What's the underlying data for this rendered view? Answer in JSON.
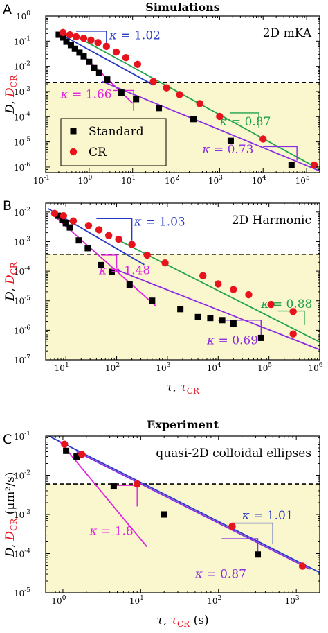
{
  "figure": {
    "background": "#ffffff",
    "shade_color": "#faf6cd"
  },
  "chart_data": [
    {
      "type": "scatter",
      "panel_label": "A",
      "title": "Simulations",
      "system": "2D mKA",
      "xlim": [
        0.1,
        200000
      ],
      "ylim": [
        6e-07,
        1
      ],
      "log_x": true,
      "log_y": true,
      "x_ticks": [
        {
          "v": 0.1,
          "m": "10",
          "e": "-1"
        },
        {
          "v": 1,
          "m": "10",
          "e": "0"
        },
        {
          "v": 10,
          "m": "10",
          "e": "1"
        },
        {
          "v": 100,
          "m": "10",
          "e": "2"
        },
        {
          "v": 1000,
          "m": "10",
          "e": "3"
        },
        {
          "v": 10000,
          "m": "10",
          "e": "4"
        },
        {
          "v": 100000,
          "m": "10",
          "e": "5"
        }
      ],
      "y_ticks": [
        {
          "v": 1e-06,
          "m": "10",
          "e": "-6"
        },
        {
          "v": 1e-05,
          "m": "10",
          "e": "-5"
        },
        {
          "v": 0.0001,
          "m": "10",
          "e": "-4"
        },
        {
          "v": 0.001,
          "m": "10",
          "e": "-3"
        },
        {
          "v": 0.01,
          "m": "10",
          "e": "-2"
        },
        {
          "v": 0.1,
          "m": "10",
          "e": "-1"
        },
        {
          "v": 1,
          "m": "10",
          "e": "0"
        }
      ],
      "threshold_y": 0.0023,
      "ylabel": {
        "main": "D, ",
        "cr": "D",
        "sub": "CR"
      },
      "legend": {
        "placement": "bottom-left",
        "entries": [
          "Standard",
          "CR"
        ]
      },
      "series": [
        {
          "name": "Standard",
          "marker": "square",
          "color": "#000000",
          "x": [
            0.2,
            0.25,
            0.3,
            0.38,
            0.47,
            0.6,
            0.75,
            1.0,
            1.3,
            1.7,
            2.6,
            5.5,
            12,
            40,
            250,
            1800,
            45000
          ],
          "y": [
            0.18,
            0.14,
            0.095,
            0.07,
            0.05,
            0.035,
            0.025,
            0.015,
            0.0085,
            0.0055,
            0.003,
            0.0009,
            0.0005,
            0.00022,
            8e-05,
            1.1e-05,
            1.2e-06
          ]
        },
        {
          "name": "CR",
          "marker": "circle",
          "color": "#e8141d",
          "x": [
            0.25,
            0.36,
            0.5,
            0.75,
            1.1,
            1.6,
            2.5,
            4.2,
            7,
            13,
            30,
            60,
            120,
            350,
            1000,
            10000,
            150000
          ],
          "y": [
            0.22,
            0.18,
            0.15,
            0.13,
            0.11,
            0.088,
            0.062,
            0.037,
            0.022,
            0.012,
            0.0025,
            0.0014,
            0.00075,
            0.00033,
            0.000102,
            1.3e-05,
            1.2e-06
          ]
        }
      ],
      "fits": [
        {
          "color": "#2438c4",
          "x": [
            0.18,
            30
          ],
          "y": [
            0.23,
            0.0018
          ]
        },
        {
          "color": "#1fa34a",
          "x": [
            0.35,
            200000
          ],
          "y": [
            0.22,
            8e-07
          ]
        },
        {
          "color": "#e021e0",
          "x": [
            0.22,
            10
          ],
          "y": [
            0.2,
            0.00034
          ]
        },
        {
          "color": "#8a2be2",
          "x": [
            2,
            200000
          ],
          "y": [
            0.0025,
            7e-07
          ]
        }
      ],
      "triangles": [
        {
          "color": "#2438c4",
          "x0": 0.5,
          "x1": 2.5,
          "y_top": 0.25,
          "y_bot": 0.048
        },
        {
          "color": "#1fa34a",
          "x0": 1700,
          "x1": 8000,
          "y_top": 0.00014,
          "y_bot": 3.5e-05
        },
        {
          "color": "#e021e0",
          "x0": 3.5,
          "x1": 10.5,
          "y_top": 0.0011,
          "y_bot": 0.00017
        },
        {
          "color": "#8a2be2",
          "x0": 10000,
          "x1": 60000,
          "y_top": 6.5e-06,
          "y_bot": 1.8e-06
        }
      ],
      "kappa_labels": [
        {
          "color": "#2438c4",
          "value": "1.02",
          "x": 2.9,
          "y": 0.12
        },
        {
          "color": "#1fa34a",
          "value": "0.87",
          "x": 1000,
          "y": 4.5e-05
        },
        {
          "color": "#e021e0",
          "value": "1.66",
          "x": 0.22,
          "y": 0.00055
        },
        {
          "color": "#8a2be2",
          "value": "0.73",
          "x": 400,
          "y": 3.5e-06
        }
      ]
    },
    {
      "type": "scatter",
      "panel_label": "B",
      "system": "2D Harmonic",
      "xlim": [
        4,
        1000000
      ],
      "ylim": [
        1e-07,
        0.02
      ],
      "log_x": true,
      "log_y": true,
      "x_ticks": [
        {
          "v": 10,
          "m": "10",
          "e": "1"
        },
        {
          "v": 100,
          "m": "10",
          "e": "2"
        },
        {
          "v": 1000,
          "m": "10",
          "e": "3"
        },
        {
          "v": 10000,
          "m": "10",
          "e": "4"
        },
        {
          "v": 100000,
          "m": "10",
          "e": "5"
        },
        {
          "v": 1000000,
          "m": "10",
          "e": "6"
        }
      ],
      "y_ticks": [
        {
          "v": 1e-07,
          "m": "10",
          "e": "-7"
        },
        {
          "v": 1e-06,
          "m": "10",
          "e": "-6"
        },
        {
          "v": 1e-05,
          "m": "10",
          "e": "-5"
        },
        {
          "v": 0.0001,
          "m": "10",
          "e": "-4"
        },
        {
          "v": 0.001,
          "m": "10",
          "e": "-3"
        },
        {
          "v": 0.01,
          "m": "10",
          "e": "-2"
        }
      ],
      "threshold_y": 0.00037,
      "ylabel": {
        "main": "D, ",
        "cr": "D",
        "sub": "CR"
      },
      "xlabel": {
        "main": "τ, ",
        "cr": "τ",
        "sub": "CR",
        "unit": ""
      },
      "series": [
        {
          "name": "Standard",
          "marker": "square",
          "color": "#000000",
          "x": [
            7,
            8.5,
            10,
            12,
            18,
            27,
            50,
            80,
            180,
            500,
            1800,
            4000,
            7000,
            12000,
            20000,
            70000
          ],
          "y": [
            0.0075,
            0.0055,
            0.0042,
            0.003,
            0.0011,
            0.0006,
            0.00016,
            9.5e-05,
            3.5e-05,
            1e-05,
            5.2e-06,
            2.8e-06,
            2.6e-06,
            2.2e-06,
            1.7e-06,
            5.5e-07
          ]
        },
        {
          "name": "CR",
          "marker": "circle",
          "color": "#e8141d",
          "x": [
            6,
            9,
            14,
            28,
            45,
            70,
            110,
            200,
            400,
            900,
            5000,
            10000,
            20000,
            40000,
            110000,
            300000
          ],
          "y": [
            0.009,
            0.0075,
            0.005,
            0.0035,
            0.0025,
            0.0016,
            0.0012,
            0.0008,
            0.00035,
            0.00019,
            7e-05,
            3.7e-05,
            2.4e-05,
            1.6e-05,
            7.5e-06,
            4.3e-06
          ]
        },
        {
          "name": "CR-end",
          "marker": "circle",
          "color": "#e8141d",
          "x": [
            300000
          ],
          "y": [
            7.5e-07
          ]
        }
      ],
      "fits": [
        {
          "color": "#2438c4",
          "x": [
            4.5,
            350
          ],
          "y": [
            0.013,
            0.000165
          ]
        },
        {
          "color": "#1fa34a",
          "x": [
            100,
            1000000
          ],
          "y": [
            0.0012,
            4e-07
          ]
        },
        {
          "color": "#e021e0",
          "x": [
            5,
            600
          ],
          "y": [
            0.0095,
            6.5e-06
          ]
        },
        {
          "color": "#8a2be2",
          "x": [
            100,
            1000000
          ],
          "y": [
            0.00011,
            2.2e-07
          ]
        }
      ],
      "triangles": [
        {
          "color": "#2438c4",
          "x0": 40,
          "x1": 200,
          "y_top": 0.006,
          "y_bot": 0.0011
        },
        {
          "color": "#1fa34a",
          "x0": 150000,
          "x1": 500000,
          "y_top": 4.5e-06,
          "y_bot": 1.5e-06
        },
        {
          "color": "#e021e0",
          "x0": 50,
          "x1": 100,
          "y_top": 0.00035,
          "y_bot": 0.00013
        },
        {
          "color": "#8a2be2",
          "x0": 10000,
          "x1": 70000,
          "y_top": 2.2e-06,
          "y_bot": 6.8e-07
        }
      ],
      "kappa_labels": [
        {
          "color": "#2438c4",
          "value": "1.03",
          "x": 220,
          "y": 0.0035
        },
        {
          "color": "#1fa34a",
          "value": "0.88",
          "x": 70000,
          "y": 5.8e-06
        },
        {
          "color": "#e021e0",
          "value": "1.48",
          "x": 45,
          "y": 7.8e-05
        },
        {
          "color": "#8a2be2",
          "value": "0.69",
          "x": 6000,
          "y": 3.4e-07
        }
      ]
    },
    {
      "type": "scatter",
      "panel_label": "C",
      "title": "Experiment",
      "system": "quasi-2D colloidal ellipses",
      "xlim": [
        0.6,
        2000
      ],
      "ylim": [
        1e-05,
        0.1
      ],
      "log_x": true,
      "log_y": true,
      "x_ticks": [
        {
          "v": 1,
          "m": "10",
          "e": "0"
        },
        {
          "v": 10,
          "m": "10",
          "e": "1"
        },
        {
          "v": 100,
          "m": "10",
          "e": "2"
        },
        {
          "v": 1000,
          "m": "10",
          "e": "3"
        }
      ],
      "y_ticks": [
        {
          "v": 1e-05,
          "m": "10",
          "e": "-5"
        },
        {
          "v": 0.0001,
          "m": "10",
          "e": "-4"
        },
        {
          "v": 0.001,
          "m": "10",
          "e": "-3"
        },
        {
          "v": 0.01,
          "m": "10",
          "e": "-2"
        },
        {
          "v": 0.1,
          "m": "10",
          "e": "-1"
        }
      ],
      "threshold_y": 0.006,
      "ylabel": {
        "main": "D, ",
        "cr": "D",
        "sub": "CR",
        "unit": " (μm²/s)"
      },
      "xlabel": {
        "main": "τ, ",
        "cr": "τ",
        "sub": "CR",
        "unit": " (s)"
      },
      "series": [
        {
          "name": "Standard",
          "marker": "square",
          "color": "#000000",
          "x": [
            1.1,
            1.5,
            4.5,
            20,
            320
          ],
          "y": [
            0.042,
            0.03,
            0.0052,
            0.001,
            9.5e-05
          ]
        },
        {
          "name": "CR",
          "marker": "circle",
          "color": "#e8141d",
          "x": [
            1.05,
            1.75,
            9,
            150,
            1200
          ],
          "y": [
            0.062,
            0.034,
            0.006,
            0.0005,
            4.8e-05
          ]
        }
      ],
      "fits": [
        {
          "color": "#2438c4",
          "x": [
            0.6,
            2000
          ],
          "y": [
            0.11,
            3.3e-05
          ]
        },
        {
          "color": "#e021e0",
          "x": [
            0.9,
            12
          ],
          "y": [
            0.075,
            0.00015
          ]
        },
        {
          "color": "#8a2be2",
          "x": [
            1.5,
            1500
          ],
          "y": [
            0.04,
            4e-05
          ]
        }
      ],
      "triangles": [
        {
          "color": "#2438c4",
          "x0": 150,
          "x1": 500,
          "y_top": 0.0006,
          "y_bot": 0.00018
        },
        {
          "color": "#e021e0",
          "x0": 4.5,
          "x1": 9,
          "y_top": 0.0055,
          "y_bot": 0.0016
        },
        {
          "color": "#8a2be2",
          "x0": 110,
          "x1": 320,
          "y_top": 0.00024,
          "y_bot": 9e-05
        }
      ],
      "kappa_labels": [
        {
          "color": "#2438c4",
          "value": "1.01",
          "x": 200,
          "y": 0.00075
        },
        {
          "color": "#e021e0",
          "value": "1.8",
          "x": 2.2,
          "y": 0.0003
        },
        {
          "color": "#8a2be2",
          "value": "0.87",
          "x": 50,
          "y": 2.4e-05
        }
      ]
    }
  ]
}
